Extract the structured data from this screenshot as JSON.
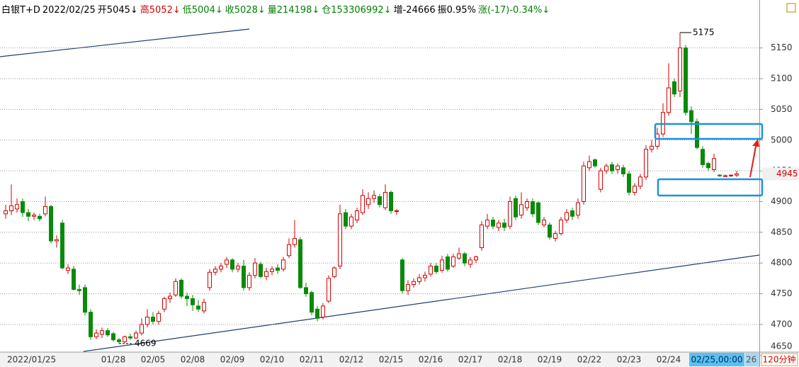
{
  "chart_data": {
    "type": "candlestick",
    "header": [
      {
        "text": "白银T+D",
        "color": "#000000"
      },
      {
        "text": "2022/02/25",
        "color": "#000000"
      },
      {
        "text": "开5045↓",
        "color": "#000000"
      },
      {
        "text": "高5052↓",
        "color": "#d40000"
      },
      {
        "text": "低5004↓",
        "color": "#008000"
      },
      {
        "text": "收5028↓",
        "color": "#008000"
      },
      {
        "text": "量214198↓",
        "color": "#008000"
      },
      {
        "text": "仓153306992↓",
        "color": "#008000"
      },
      {
        "text": "增-24666",
        "color": "#000000"
      },
      {
        "text": "振0.95%",
        "color": "#000000"
      },
      {
        "text": "涨(-17)-0.34%↓",
        "color": "#008000"
      }
    ],
    "up_color": "#d40000",
    "down_color": "#0a8a0a",
    "ylim": [
      4655,
      5228
    ],
    "yticks": [
      4650,
      4700,
      4750,
      4800,
      4850,
      4900,
      4950,
      5000,
      5050,
      5100,
      5150
    ],
    "grid": true,
    "last_price": 4945,
    "high_label": 5175,
    "low_label": 4669,
    "period_label": "120分钟",
    "overflow_label": "26",
    "categories": [
      null,
      null,
      null,
      null,
      "2022/01/25",
      null,
      null,
      null,
      null,
      null,
      null,
      null,
      null,
      null,
      null,
      null,
      null,
      null,
      null,
      "01/28",
      null,
      null,
      null,
      null,
      null,
      null,
      "02/05",
      null,
      null,
      null,
      null,
      null,
      null,
      "02/08",
      null,
      null,
      null,
      null,
      null,
      null,
      "02/09",
      null,
      null,
      null,
      null,
      null,
      null,
      "02/10",
      null,
      null,
      null,
      null,
      null,
      null,
      "02/11",
      null,
      null,
      null,
      null,
      null,
      null,
      "02/12",
      null,
      null,
      null,
      null,
      null,
      null,
      "02/15",
      null,
      null,
      null,
      null,
      null,
      null,
      "02/16",
      null,
      null,
      null,
      null,
      null,
      null,
      "02/17",
      null,
      null,
      null,
      null,
      null,
      null,
      "02/18",
      null,
      null,
      null,
      null,
      null,
      null,
      "02/19",
      null,
      null,
      null,
      null,
      null,
      null,
      "02/22",
      null,
      null,
      null,
      null,
      null,
      null,
      "02/23",
      null,
      null,
      null,
      null,
      null,
      null,
      "02/24",
      null,
      null,
      null,
      null,
      null,
      null,
      null,
      "02/25,00:00",
      null,
      null,
      null,
      null
    ],
    "ohlc": [
      [
        4880,
        4895,
        4872,
        4885
      ],
      [
        4885,
        4928,
        4878,
        4893
      ],
      [
        4888,
        4905,
        4882,
        4895
      ],
      [
        4900,
        4905,
        4875,
        4882
      ],
      [
        4882,
        4888,
        4868,
        4876
      ],
      [
        4876,
        4882,
        4870,
        4878
      ],
      [
        4876,
        4880,
        4868,
        4872
      ],
      [
        4880,
        4908,
        4876,
        4892
      ],
      [
        4892,
        4895,
        4832,
        4836
      ],
      [
        4836,
        4845,
        4825,
        4838
      ],
      [
        4865,
        4870,
        4790,
        4792
      ],
      [
        4788,
        4798,
        4782,
        4792
      ],
      [
        4790,
        4795,
        4755,
        4757
      ],
      [
        4757,
        4765,
        4748,
        4755
      ],
      [
        4760,
        4765,
        4715,
        4720
      ],
      [
        4720,
        4725,
        4675,
        4680
      ],
      [
        4680,
        4692,
        4676,
        4686
      ],
      [
        4684,
        4695,
        4678,
        4690
      ],
      [
        4690,
        4694,
        4680,
        4683
      ],
      [
        4685,
        4688,
        4672,
        4675
      ],
      [
        4675,
        4678,
        4669,
        4672
      ],
      [
        4672,
        4682,
        4670,
        4680
      ],
      [
        4680,
        4685,
        4675,
        4678
      ],
      [
        4678,
        4690,
        4676,
        4686
      ],
      [
        4686,
        4710,
        4682,
        4700
      ],
      [
        4700,
        4725,
        4695,
        4712
      ],
      [
        4712,
        4720,
        4700,
        4705
      ],
      [
        4705,
        4722,
        4700,
        4718
      ],
      [
        4725,
        4745,
        4720,
        4742
      ],
      [
        4742,
        4752,
        4735,
        4746
      ],
      [
        4748,
        4775,
        4745,
        4770
      ],
      [
        4772,
        4775,
        4742,
        4746
      ],
      [
        4746,
        4752,
        4730,
        4742
      ],
      [
        4742,
        4748,
        4722,
        4732
      ],
      [
        4730,
        4740,
        4720,
        4725
      ],
      [
        4722,
        4742,
        4718,
        4736
      ],
      [
        4760,
        4790,
        4755,
        4785
      ],
      [
        4785,
        4795,
        4780,
        4790
      ],
      [
        4790,
        4800,
        4785,
        4795
      ],
      [
        4798,
        4810,
        4792,
        4805
      ],
      [
        4805,
        4808,
        4785,
        4790
      ],
      [
        4790,
        4800,
        4785,
        4795
      ],
      [
        4795,
        4805,
        4755,
        4760
      ],
      [
        4760,
        4785,
        4755,
        4780
      ],
      [
        4780,
        4808,
        4775,
        4800
      ],
      [
        4798,
        4802,
        4775,
        4778
      ],
      [
        4778,
        4792,
        4772,
        4786
      ],
      [
        4786,
        4795,
        4780,
        4790
      ],
      [
        4792,
        4798,
        4782,
        4788
      ],
      [
        4790,
        4810,
        4786,
        4805
      ],
      [
        4812,
        4840,
        4808,
        4830
      ],
      [
        4830,
        4870,
        4825,
        4840
      ],
      [
        4838,
        4842,
        4758,
        4760
      ],
      [
        4760,
        4768,
        4745,
        4750
      ],
      [
        4752,
        4755,
        4715,
        4720
      ],
      [
        4725,
        4730,
        4705,
        4710
      ],
      [
        4712,
        4735,
        4708,
        4730
      ],
      [
        4738,
        4780,
        4735,
        4775
      ],
      [
        4778,
        4795,
        4775,
        4792
      ],
      [
        4795,
        4895,
        4790,
        4880
      ],
      [
        4882,
        4888,
        4855,
        4860
      ],
      [
        4860,
        4880,
        4855,
        4875
      ],
      [
        4870,
        4890,
        4865,
        4885
      ],
      [
        4882,
        4920,
        4878,
        4910
      ],
      [
        4895,
        4915,
        4888,
        4905
      ],
      [
        4905,
        4918,
        4898,
        4910
      ],
      [
        4908,
        4912,
        4890,
        4895
      ],
      [
        4890,
        4928,
        4886,
        4915
      ],
      [
        4915,
        4918,
        4880,
        4885
      ],
      [
        4885,
        4888,
        4878,
        4885
      ],
      [
        4805,
        4808,
        4750,
        4755
      ],
      [
        4755,
        4772,
        4748,
        4765
      ],
      [
        4765,
        4775,
        4760,
        4770
      ],
      [
        4770,
        4782,
        4765,
        4776
      ],
      [
        4776,
        4786,
        4770,
        4780
      ],
      [
        4782,
        4800,
        4778,
        4795
      ],
      [
        4795,
        4800,
        4782,
        4786
      ],
      [
        4788,
        4812,
        4784,
        4805
      ],
      [
        4810,
        4815,
        4786,
        4790
      ],
      [
        4795,
        4815,
        4792,
        4810
      ],
      [
        4808,
        4825,
        4805,
        4815
      ],
      [
        4815,
        4818,
        4795,
        4800
      ],
      [
        4798,
        4810,
        4792,
        4805
      ],
      [
        4805,
        4812,
        4800,
        4810
      ],
      [
        4825,
        4868,
        4820,
        4862
      ],
      [
        4860,
        4880,
        4855,
        4870
      ],
      [
        4870,
        4875,
        4855,
        4860
      ],
      [
        4858,
        4870,
        4852,
        4865
      ],
      [
        4865,
        4872,
        4852,
        4858
      ],
      [
        4860,
        4908,
        4855,
        4900
      ],
      [
        4905,
        4910,
        4870,
        4875
      ],
      [
        4878,
        4915,
        4872,
        4895
      ],
      [
        4890,
        4905,
        4885,
        4900
      ],
      [
        4900,
        4905,
        4875,
        4880
      ],
      [
        4898,
        4900,
        4862,
        4866
      ],
      [
        4862,
        4875,
        4858,
        4870
      ],
      [
        4862,
        4866,
        4838,
        4842
      ],
      [
        4840,
        4852,
        4835,
        4848
      ],
      [
        4848,
        4875,
        4845,
        4870
      ],
      [
        4870,
        4888,
        4865,
        4882
      ],
      [
        4885,
        4890,
        4870,
        4876
      ],
      [
        4878,
        4905,
        4872,
        4898
      ],
      [
        4900,
        4965,
        4895,
        4958
      ],
      [
        4955,
        4975,
        4950,
        4965
      ],
      [
        4968,
        4970,
        4955,
        4958
      ],
      [
        4920,
        4955,
        4915,
        4950
      ],
      [
        4950,
        4962,
        4945,
        4958
      ],
      [
        4960,
        4965,
        4945,
        4950
      ],
      [
        4952,
        4962,
        4945,
        4958
      ],
      [
        4955,
        4960,
        4940,
        4945
      ],
      [
        4945,
        4950,
        4910,
        4915
      ],
      [
        4915,
        4930,
        4910,
        4925
      ],
      [
        4925,
        4945,
        4920,
        4940
      ],
      [
        4940,
        4992,
        4935,
        4985
      ],
      [
        4985,
        5000,
        4980,
        4990
      ],
      [
        4990,
        5020,
        4985,
        5010
      ],
      [
        5010,
        5060,
        5005,
        5045
      ],
      [
        5045,
        5125,
        5040,
        5085
      ],
      [
        5095,
        5100,
        5070,
        5075
      ],
      [
        5080,
        5175,
        5070,
        5150
      ],
      [
        5150,
        5155,
        5040,
        5045
      ],
      [
        5048,
        5055,
        5010,
        5030
      ],
      [
        5030,
        5035,
        4985,
        4988
      ],
      [
        4985,
        4990,
        4955,
        4960
      ],
      [
        4962,
        4965,
        4950,
        4955
      ],
      [
        4952,
        4978,
        4948,
        4970
      ],
      [
        4943,
        4945,
        4940,
        4942
      ],
      [
        4942,
        4944,
        4940,
        4942
      ],
      [
        4942,
        4944,
        4940,
        4943
      ],
      [
        4943,
        4950,
        4940,
        4945
      ]
    ]
  }
}
